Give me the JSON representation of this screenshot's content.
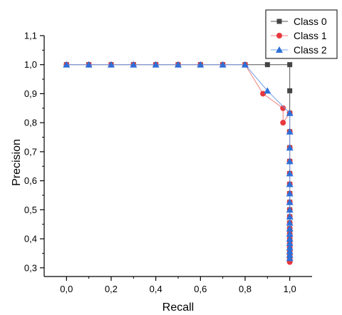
{
  "chart_data": {
    "type": "line",
    "xlabel": "Recall",
    "ylabel": "Precision",
    "xlim": [
      -0.1,
      1.1
    ],
    "ylim": [
      0.27,
      1.1
    ],
    "x_ticks": [
      "0,0",
      "0,2",
      "0,4",
      "0,6",
      "0,8",
      "1,0"
    ],
    "x_tick_values": [
      0.0,
      0.2,
      0.4,
      0.6,
      0.8,
      1.0
    ],
    "y_ticks": [
      "0,3",
      "0,4",
      "0,5",
      "0,6",
      "0,7",
      "0,8",
      "0,9",
      "1,0",
      "1,1"
    ],
    "y_tick_values": [
      0.3,
      0.4,
      0.5,
      0.6,
      0.7,
      0.8,
      0.9,
      1.0,
      1.1
    ],
    "legend_position": "top-right",
    "series": [
      {
        "name": "Class 0",
        "marker": "square",
        "color": "#444444",
        "line_color": "#555555",
        "points": [
          [
            0.0,
            1.0
          ],
          [
            0.1,
            1.0
          ],
          [
            0.2,
            1.0
          ],
          [
            0.3,
            1.0
          ],
          [
            0.4,
            1.0
          ],
          [
            0.5,
            1.0
          ],
          [
            0.6,
            1.0
          ],
          [
            0.7,
            1.0
          ],
          [
            0.8,
            1.0
          ],
          [
            0.9,
            1.0
          ],
          [
            1.0,
            1.0
          ],
          [
            1.0,
            0.91
          ],
          [
            1.0,
            0.833
          ],
          [
            1.0,
            0.769
          ],
          [
            1.0,
            0.714
          ],
          [
            1.0,
            0.667
          ],
          [
            1.0,
            0.625
          ],
          [
            1.0,
            0.588
          ],
          [
            1.0,
            0.556
          ],
          [
            1.0,
            0.526
          ],
          [
            1.0,
            0.5
          ],
          [
            1.0,
            0.476
          ],
          [
            1.0,
            0.455
          ],
          [
            1.0,
            0.435
          ],
          [
            1.0,
            0.417
          ],
          [
            1.0,
            0.4
          ],
          [
            1.0,
            0.385
          ],
          [
            1.0,
            0.37
          ],
          [
            1.0,
            0.357
          ],
          [
            1.0,
            0.345
          ],
          [
            1.0,
            0.333
          ]
        ]
      },
      {
        "name": "Class 1",
        "marker": "circle",
        "color": "#e8383d",
        "line_color": "#f08080",
        "points": [
          [
            0.0,
            1.0
          ],
          [
            0.1,
            1.0
          ],
          [
            0.2,
            1.0
          ],
          [
            0.3,
            1.0
          ],
          [
            0.4,
            1.0
          ],
          [
            0.5,
            1.0
          ],
          [
            0.6,
            1.0
          ],
          [
            0.7,
            1.0
          ],
          [
            0.8,
            1.0
          ],
          [
            0.88,
            0.9
          ],
          [
            0.97,
            0.85
          ],
          [
            0.97,
            0.8
          ],
          [
            1.0,
            0.833
          ],
          [
            1.0,
            0.769
          ],
          [
            1.0,
            0.714
          ],
          [
            1.0,
            0.667
          ],
          [
            1.0,
            0.625
          ],
          [
            1.0,
            0.588
          ],
          [
            1.0,
            0.556
          ],
          [
            1.0,
            0.526
          ],
          [
            1.0,
            0.5
          ],
          [
            1.0,
            0.476
          ],
          [
            1.0,
            0.455
          ],
          [
            1.0,
            0.435
          ],
          [
            1.0,
            0.417
          ],
          [
            1.0,
            0.4
          ],
          [
            1.0,
            0.385
          ],
          [
            1.0,
            0.37
          ],
          [
            1.0,
            0.357
          ],
          [
            1.0,
            0.345
          ],
          [
            1.0,
            0.333
          ],
          [
            1.0,
            0.32
          ]
        ]
      },
      {
        "name": "Class 2",
        "marker": "triangle",
        "color": "#2e6fd8",
        "line_color": "#6fa0e8",
        "points": [
          [
            0.0,
            1.0
          ],
          [
            0.1,
            1.0
          ],
          [
            0.2,
            1.0
          ],
          [
            0.3,
            1.0
          ],
          [
            0.4,
            1.0
          ],
          [
            0.5,
            1.0
          ],
          [
            0.6,
            1.0
          ],
          [
            0.7,
            1.0
          ],
          [
            0.8,
            1.0
          ],
          [
            0.9,
            0.91
          ],
          [
            1.0,
            0.833
          ],
          [
            1.0,
            0.769
          ],
          [
            1.0,
            0.714
          ],
          [
            1.0,
            0.667
          ],
          [
            1.0,
            0.625
          ],
          [
            1.0,
            0.588
          ],
          [
            1.0,
            0.556
          ],
          [
            1.0,
            0.526
          ],
          [
            1.0,
            0.5
          ],
          [
            1.0,
            0.476
          ],
          [
            1.0,
            0.455
          ],
          [
            1.0,
            0.435
          ],
          [
            1.0,
            0.417
          ],
          [
            1.0,
            0.4
          ],
          [
            1.0,
            0.385
          ],
          [
            1.0,
            0.37
          ],
          [
            1.0,
            0.357
          ],
          [
            1.0,
            0.345
          ],
          [
            1.0,
            0.333
          ]
        ]
      }
    ]
  }
}
